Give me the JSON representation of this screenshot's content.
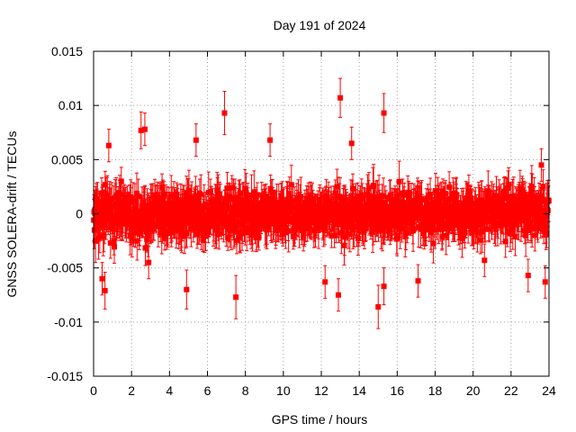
{
  "chart_data": {
    "type": "scatter",
    "title": "Day 191 of 2024",
    "xlabel": "GPS time / hours",
    "ylabel": "GNSS SOLERA-drift / TECUs",
    "xlim": [
      0,
      24
    ],
    "ylim": [
      -0.015,
      0.015
    ],
    "x_ticks": [
      "0",
      "2",
      "4",
      "6",
      "8",
      "10",
      "12",
      "14",
      "16",
      "18",
      "20",
      "22",
      "24"
    ],
    "y_ticks": [
      "0.015",
      "0.01",
      "0.005",
      "0",
      "-0.005",
      "-0.01",
      "-0.015"
    ],
    "x_tick_values": [
      0,
      2,
      4,
      6,
      8,
      10,
      12,
      14,
      16,
      18,
      20,
      22,
      24
    ],
    "y_tick_values": [
      0.015,
      0.01,
      0.005,
      0,
      -0.005,
      -0.01,
      -0.015
    ],
    "grid": true,
    "series_color": "#ff0000",
    "marker": "square",
    "error_bars": true,
    "series": [
      {
        "noise_envelope": {
          "typical_abs": 0.003,
          "typical_error": 0.0015
        },
        "notable_points": [
          {
            "x": 0.1,
            "y": -0.0025,
            "err": 0.002
          },
          {
            "x": 0.45,
            "y": -0.006,
            "err": 0.0015
          },
          {
            "x": 0.6,
            "y": -0.0071,
            "err": 0.0017
          },
          {
            "x": 0.8,
            "y": 0.0063,
            "err": 0.0015
          },
          {
            "x": 2.5,
            "y": 0.0077,
            "err": 0.0017
          },
          {
            "x": 2.7,
            "y": 0.0078,
            "err": 0.0015
          },
          {
            "x": 2.9,
            "y": -0.0045,
            "err": 0.0015
          },
          {
            "x": 4.9,
            "y": -0.007,
            "err": 0.0018
          },
          {
            "x": 5.4,
            "y": 0.0068,
            "err": 0.0015
          },
          {
            "x": 6.9,
            "y": 0.0093,
            "err": 0.002
          },
          {
            "x": 7.5,
            "y": -0.0077,
            "err": 0.002
          },
          {
            "x": 9.3,
            "y": 0.0068,
            "err": 0.0015
          },
          {
            "x": 12.2,
            "y": -0.0063,
            "err": 0.0015
          },
          {
            "x": 13.0,
            "y": 0.0107,
            "err": 0.0018
          },
          {
            "x": 12.9,
            "y": -0.0075,
            "err": 0.0015
          },
          {
            "x": 13.6,
            "y": 0.0065,
            "err": 0.0015
          },
          {
            "x": 15.0,
            "y": -0.0086,
            "err": 0.002
          },
          {
            "x": 15.3,
            "y": 0.0093,
            "err": 0.0018
          },
          {
            "x": 15.3,
            "y": -0.0067,
            "err": 0.0017
          },
          {
            "x": 17.1,
            "y": -0.0062,
            "err": 0.0015
          },
          {
            "x": 20.6,
            "y": -0.0043,
            "err": 0.0015
          },
          {
            "x": 22.9,
            "y": -0.0057,
            "err": 0.0015
          },
          {
            "x": 23.6,
            "y": 0.0045,
            "err": 0.0015
          },
          {
            "x": 23.8,
            "y": -0.0063,
            "err": 0.0015
          }
        ]
      }
    ]
  }
}
